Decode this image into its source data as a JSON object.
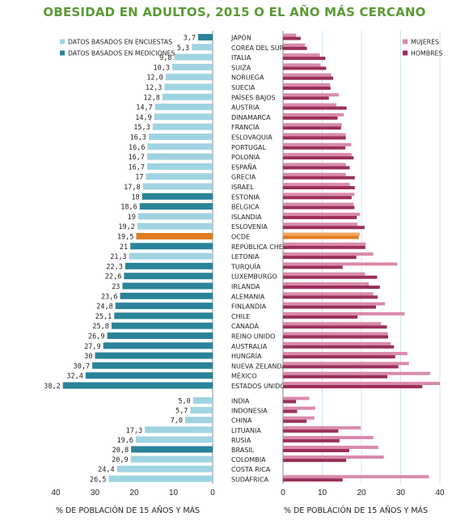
{
  "title": "OBESIDAD EN ADULTOS, 2015 O EL AÑO MÁS CERCANO",
  "colors": {
    "survey": "#9fd3e2",
    "measured": "#2a8399",
    "oecd": "#e07b1f",
    "women": "#d989ab",
    "men": "#9a2f5a",
    "grid": "#cfe6ec",
    "title": "#5a9a34"
  },
  "chart_data": [
    {
      "type": "bar",
      "orientation": "horizontal",
      "side": "left",
      "xlabel": "% DE POBLACIÓN DE 15 AÑOS Y MÁS",
      "xlim": [
        0,
        40
      ],
      "xticks": [
        40,
        30,
        20,
        10,
        0
      ],
      "legend": [
        {
          "name": "DATOS BASADOS EN ENCUESTAS",
          "color": "#9fd3e2"
        },
        {
          "name": "DATOS BASADOS EN MEDICIONES",
          "color": "#2a8399"
        }
      ],
      "legend_position": "top-left",
      "values_text": [
        "3,7",
        "5,3",
        "9,8",
        "10,3",
        "12,0",
        "12,3",
        "12,8",
        "14,7",
        "14,9",
        "15,3",
        "16,3",
        "16,6",
        "16,7",
        "16,7",
        "17",
        "17,8",
        "18",
        "18,6",
        "19",
        "19,2",
        "19,5",
        "21",
        "21,3",
        "22,3",
        "22,6",
        "23",
        "23,6",
        "24,8",
        "25,1",
        "25,8",
        "26,9",
        "27,9",
        "30",
        "30,7",
        "32,4",
        "38,2",
        "5,0",
        "5,7",
        "7,0",
        "17,3",
        "19,6",
        "20,8",
        "20,9",
        "24,4",
        "26,5"
      ],
      "values": [
        3.7,
        5.3,
        9.8,
        10.3,
        12.0,
        12.3,
        12.8,
        14.7,
        14.9,
        15.3,
        16.3,
        16.6,
        16.7,
        16.7,
        17,
        17.8,
        18,
        18.6,
        19,
        19.2,
        19.5,
        21,
        21.3,
        22.3,
        22.6,
        23,
        23.6,
        24.8,
        25.1,
        25.8,
        26.9,
        27.9,
        30,
        30.7,
        32.4,
        38.2,
        5.0,
        5.7,
        7.0,
        17.3,
        19.6,
        20.8,
        20.9,
        24.4,
        26.5
      ],
      "data_type": [
        "m",
        "s",
        "s",
        "s",
        "s",
        "s",
        "s",
        "s",
        "s",
        "s",
        "s",
        "s",
        "s",
        "s",
        "s",
        "s",
        "m",
        "m",
        "s",
        "s",
        "o",
        "m",
        "s",
        "m",
        "m",
        "m",
        "m",
        "m",
        "m",
        "m",
        "m",
        "m",
        "m",
        "m",
        "m",
        "m",
        "s",
        "s",
        "s",
        "s",
        "s",
        "m",
        "s",
        "s",
        "s"
      ]
    },
    {
      "type": "bar",
      "orientation": "horizontal",
      "side": "right",
      "xlabel": "% DE POBLACIÓN DE 15 AÑOS Y MÁS",
      "xlim": [
        0,
        40
      ],
      "xticks": [
        0,
        10,
        20,
        30,
        40
      ],
      "grid": true,
      "legend_position": "top-right",
      "series": [
        {
          "name": "MUJERES",
          "color": "#d989ab",
          "values": [
            3.3,
            5.6,
            9.4,
            9.6,
            12.3,
            12.0,
            14.2,
            13.6,
            15.5,
            15.0,
            16.0,
            17.4,
            17.5,
            16.0,
            16.0,
            17.0,
            18.2,
            18.0,
            19.6,
            19.0,
            19.6,
            21.1,
            23.0,
            29.1,
            20.9,
            21.9,
            23.0,
            26.0,
            31.0,
            25.0,
            26.7,
            27.5,
            31.7,
            32.1,
            37.5,
            40.0,
            6.7,
            8.2,
            8.0,
            19.8,
            23.0,
            24.3,
            25.7,
            0,
            37.2
          ]
        },
        {
          "name": "HOMBRES",
          "color": "#9a2f5a",
          "values": [
            4.5,
            6.1,
            10.8,
            11.0,
            12.8,
            12.1,
            11.7,
            16.2,
            13.9,
            14.8,
            16.0,
            15.9,
            18.0,
            17.0,
            18.3,
            18.3,
            17.5,
            18.2,
            18.8,
            20.8,
            19.3,
            21.0,
            18.7,
            15.2,
            24.0,
            24.7,
            24.1,
            23.7,
            19.0,
            26.5,
            26.8,
            28.3,
            28.6,
            29.4,
            26.6,
            35.5,
            3.3,
            3.6,
            6.0,
            14.1,
            14.4,
            16.9,
            16.1,
            0,
            15.2
          ]
        }
      ]
    }
  ],
  "countries": [
    "JAPÓN",
    "COREA DEL SUR",
    "ITALIA",
    "SUIZA",
    "NORUEGA",
    "SUECIA",
    "PAÍSES BAJOS",
    "AUSTRIA",
    "DINAMARCA",
    "FRANCIA",
    "ESLOVAQUIA",
    "PORTUGAL",
    "POLONIA",
    "ESPAÑA",
    "GRECIA",
    "ISRAEL",
    "ESTONIA",
    "BÉLGICA",
    "ISLANDIA",
    "ESLOVENIA",
    "OCDE",
    "REPÚBLICA CHECA",
    "LETONIA",
    "TURQUÍA",
    "LUXEMBURGO",
    "IRLANDA",
    "ALEMANIA",
    "FINLANDIA",
    "CHILE",
    "CANADÁ",
    "REINO UNIDO",
    "AUSTRALIA",
    "HUNGRÍA",
    "NUEVA ZELANDA",
    "MÉXICO",
    "ESTADOS UNIDOS",
    "INDIA",
    "INDONESIA",
    "CHINA",
    "LITUANIA",
    "RUSIA",
    "BRASIL",
    "COLOMBIA",
    "COSTA RICA",
    "SUDÁFRICA"
  ]
}
